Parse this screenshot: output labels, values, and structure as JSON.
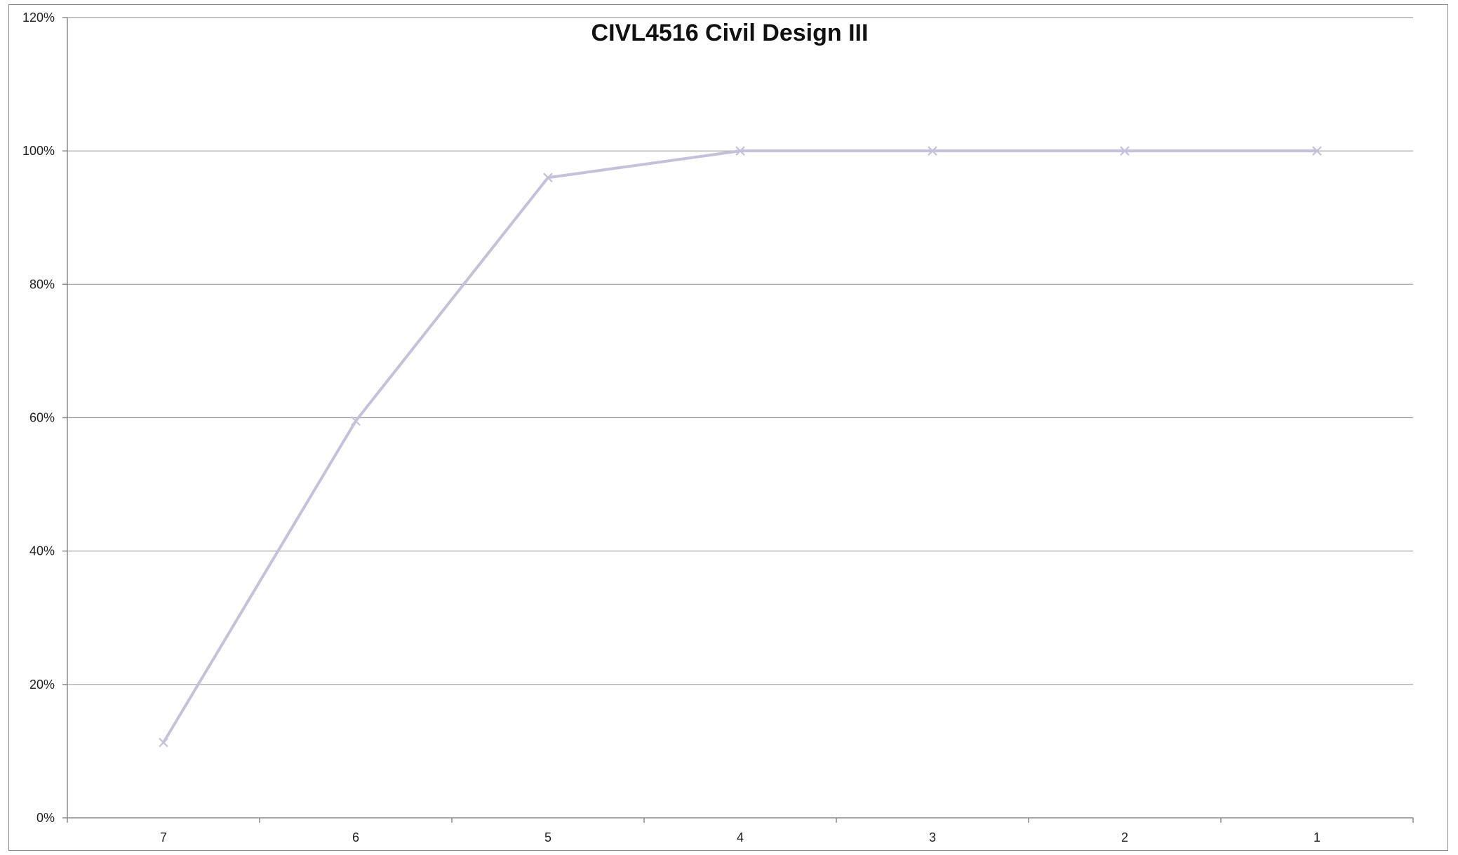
{
  "chart_data": {
    "type": "line",
    "title": "CIVL4516 Civil Design III",
    "xlabel": "",
    "ylabel": "",
    "categories": [
      "7",
      "6",
      "5",
      "4",
      "3",
      "2",
      "1"
    ],
    "series": [
      {
        "values": [
          0.113,
          0.595,
          0.96,
          1.0,
          1.0,
          1.0,
          1.0
        ],
        "color": "#c4c1d8",
        "marker": "x"
      }
    ],
    "ylim": [
      0,
      1.2
    ],
    "yticks": [
      0,
      0.2,
      0.4,
      0.6,
      0.8,
      1.0,
      1.2
    ],
    "ytick_labels": [
      "0%",
      "20%",
      "40%",
      "60%",
      "80%",
      "100%",
      "120%"
    ],
    "grid": true,
    "legend": "none"
  }
}
